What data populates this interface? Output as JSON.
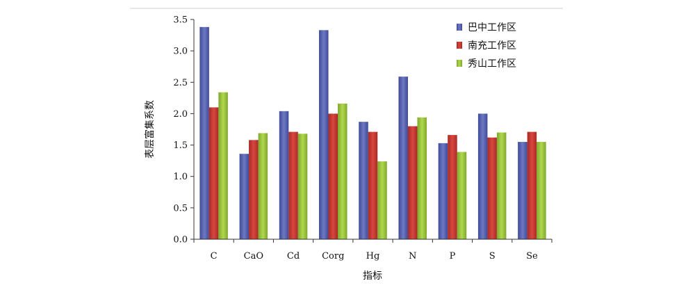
{
  "chart_data": {
    "type": "bar",
    "xlabel": "指标",
    "ylabel": "表层富集系数",
    "ylim": [
      0,
      3.5
    ],
    "yticks": [
      "0.0",
      "0.5",
      "1.0",
      "1.5",
      "2.0",
      "2.5",
      "3.0",
      "3.5"
    ],
    "grid": false,
    "legend_position": "top-right",
    "categories": [
      "C",
      "CaO",
      "Cd",
      "Corg",
      "Hg",
      "N",
      "P",
      "S",
      "Se"
    ],
    "series": [
      {
        "name": "巴中工作区",
        "color": "#5b66b0",
        "values": [
          3.38,
          1.36,
          2.04,
          3.33,
          1.87,
          2.59,
          1.53,
          2.0,
          1.55
        ]
      },
      {
        "name": "南充工作区",
        "color": "#c63a33",
        "values": [
          2.1,
          1.58,
          1.71,
          2.0,
          1.71,
          1.8,
          1.66,
          1.62,
          1.71
        ]
      },
      {
        "name": "秀山工作区",
        "color": "#9cc63c",
        "values": [
          2.34,
          1.69,
          1.68,
          2.16,
          1.24,
          1.94,
          1.39,
          1.7,
          1.55
        ]
      }
    ]
  }
}
